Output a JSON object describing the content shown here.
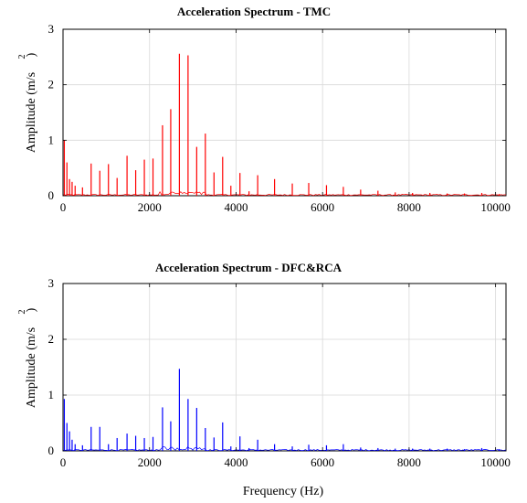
{
  "chart_data": [
    {
      "type": "line",
      "title": "Acceleration Spectrum - TMC",
      "xlabel": "",
      "ylabel": "Amplitude (m/s",
      "ylabel_sup": "2",
      "ylabel_close": ")",
      "xlim": [
        0,
        10240
      ],
      "ylim": [
        0,
        3
      ],
      "xticks": [
        0,
        2000,
        4000,
        6000,
        8000,
        10000
      ],
      "yticks": [
        0,
        1,
        2,
        3
      ],
      "grid": true,
      "color": "#ff0000",
      "series": [
        {
          "peaks": [
            [
              30,
              1.0
            ],
            [
              90,
              0.6
            ],
            [
              150,
              0.3
            ],
            [
              210,
              0.25
            ],
            [
              280,
              0.18
            ],
            [
              450,
              0.15
            ],
            [
              650,
              0.58
            ],
            [
              850,
              0.45
            ],
            [
              1050,
              0.57
            ],
            [
              1250,
              0.32
            ],
            [
              1480,
              0.72
            ],
            [
              1680,
              0.46
            ],
            [
              1880,
              0.65
            ],
            [
              2080,
              0.67
            ],
            [
              2300,
              1.27
            ],
            [
              2490,
              1.56
            ],
            [
              2690,
              2.56
            ],
            [
              2890,
              2.53
            ],
            [
              3090,
              0.88
            ],
            [
              3290,
              1.12
            ],
            [
              3490,
              0.42
            ],
            [
              3690,
              0.7
            ],
            [
              3880,
              0.18
            ],
            [
              4090,
              0.41
            ],
            [
              4300,
              0.08
            ],
            [
              4500,
              0.37
            ],
            [
              4890,
              0.3
            ],
            [
              5300,
              0.22
            ],
            [
              5680,
              0.23
            ],
            [
              6090,
              0.19
            ],
            [
              6480,
              0.16
            ],
            [
              6880,
              0.11
            ],
            [
              7280,
              0.09
            ],
            [
              7680,
              0.06
            ],
            [
              8080,
              0.05
            ],
            [
              8480,
              0.05
            ],
            [
              8880,
              0.04
            ],
            [
              9280,
              0.04
            ],
            [
              9680,
              0.05
            ],
            [
              10080,
              0.03
            ]
          ]
        }
      ]
    },
    {
      "type": "line",
      "title": "Acceleration Spectrum - DFC&RCA",
      "xlabel": "Frequency (Hz)",
      "ylabel": "Amplitude (m/s",
      "ylabel_sup": "2",
      "ylabel_close": ")",
      "xlim": [
        0,
        10240
      ],
      "ylim": [
        0,
        3
      ],
      "xticks": [
        0,
        2000,
        4000,
        6000,
        8000,
        10000
      ],
      "yticks": [
        0,
        1,
        2,
        3
      ],
      "grid": true,
      "color": "#0000ff",
      "series": [
        {
          "peaks": [
            [
              30,
              0.93
            ],
            [
              90,
              0.5
            ],
            [
              150,
              0.35
            ],
            [
              210,
              0.2
            ],
            [
              280,
              0.12
            ],
            [
              450,
              0.1
            ],
            [
              650,
              0.43
            ],
            [
              850,
              0.43
            ],
            [
              1050,
              0.12
            ],
            [
              1250,
              0.23
            ],
            [
              1480,
              0.31
            ],
            [
              1680,
              0.27
            ],
            [
              1880,
              0.23
            ],
            [
              2080,
              0.25
            ],
            [
              2300,
              0.78
            ],
            [
              2490,
              0.53
            ],
            [
              2690,
              1.47
            ],
            [
              2890,
              0.93
            ],
            [
              3090,
              0.77
            ],
            [
              3290,
              0.41
            ],
            [
              3490,
              0.24
            ],
            [
              3690,
              0.51
            ],
            [
              3880,
              0.08
            ],
            [
              4090,
              0.26
            ],
            [
              4300,
              0.05
            ],
            [
              4500,
              0.2
            ],
            [
              4890,
              0.12
            ],
            [
              5300,
              0.08
            ],
            [
              5680,
              0.11
            ],
            [
              6090,
              0.1
            ],
            [
              6480,
              0.12
            ],
            [
              6880,
              0.06
            ],
            [
              7280,
              0.05
            ],
            [
              7680,
              0.04
            ],
            [
              8080,
              0.04
            ],
            [
              8480,
              0.04
            ],
            [
              8880,
              0.04
            ],
            [
              9280,
              0.03
            ],
            [
              9680,
              0.05
            ],
            [
              10080,
              0.03
            ]
          ]
        }
      ]
    }
  ]
}
